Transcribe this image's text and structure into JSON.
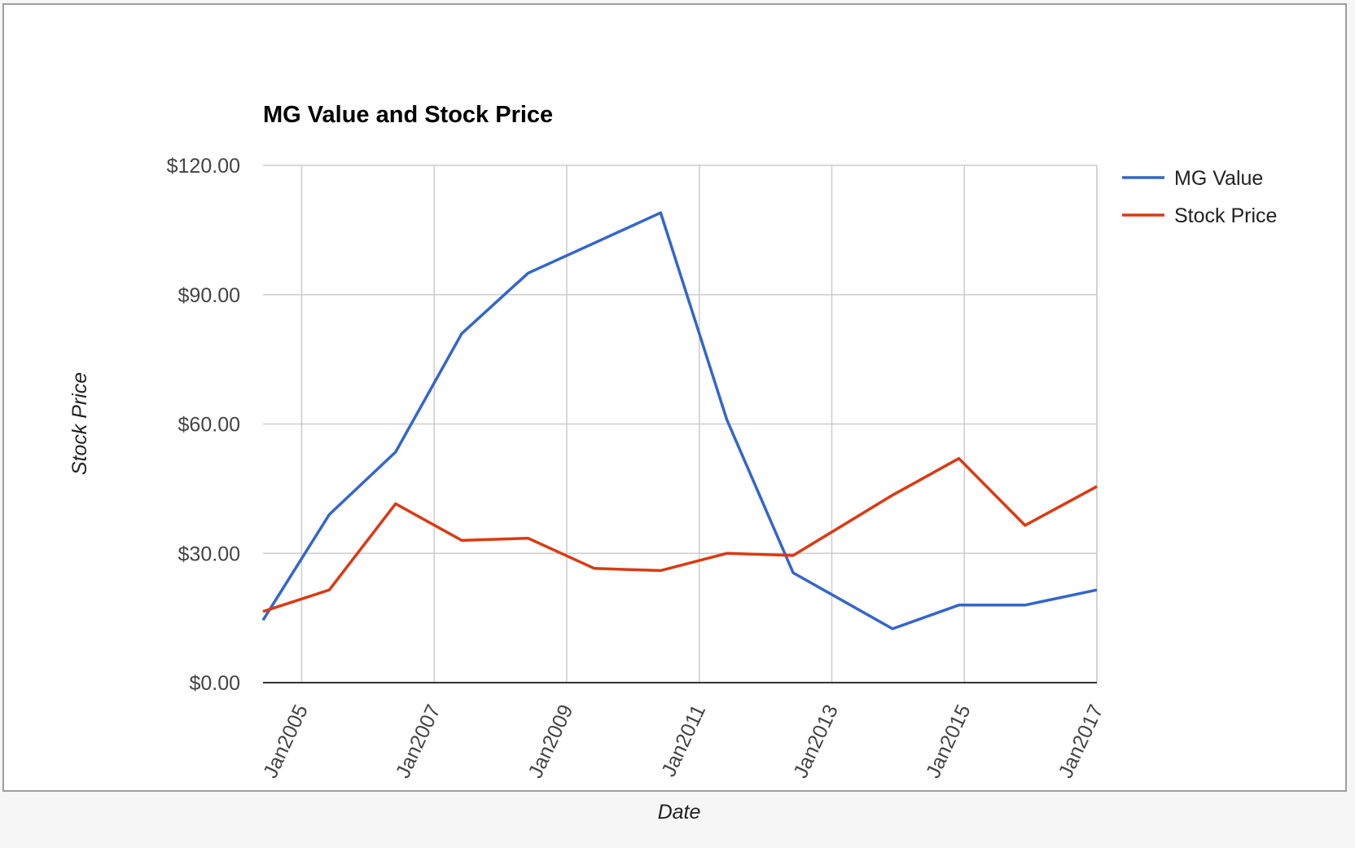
{
  "chart_data": {
    "type": "line",
    "title": "MG Value and Stock Price",
    "xlabel": "Date",
    "ylabel": "Stock Price",
    "ylim": [
      0,
      120
    ],
    "yticks": [
      "$0.00",
      "$30.00",
      "$60.00",
      "$90.00",
      "$120.00"
    ],
    "ytick_values": [
      0,
      30,
      60,
      90,
      120
    ],
    "xticks": [
      "Jan2005",
      "Jan2007",
      "Jan2009",
      "Jan2011",
      "Jan2013",
      "Jan2015",
      "Jan2017"
    ],
    "xtick_years": [
      2005,
      2007,
      2009,
      2011,
      2013,
      2015,
      2017
    ],
    "xlim": [
      "2004-06",
      "2017-01"
    ],
    "x": [
      "2004-06",
      "2005-06",
      "2006-06",
      "2007-06",
      "2008-06",
      "2009-06",
      "2010-06",
      "2011-06",
      "2012-06",
      "2013-12",
      "2014-12",
      "2015-12",
      "2017-01"
    ],
    "series": [
      {
        "name": "MG Value",
        "color": "#3366cc",
        "values": [
          14.5,
          39,
          53.5,
          81,
          95,
          102,
          109,
          61,
          25.5,
          12.5,
          18,
          18,
          21.5
        ]
      },
      {
        "name": "Stock Price",
        "color": "#dc3912",
        "values": [
          16.5,
          21.5,
          41.5,
          33,
          33.5,
          26.5,
          26,
          30,
          29.5,
          43.5,
          52,
          36.5,
          45.5
        ]
      }
    ],
    "grid": true,
    "legend_position": "right"
  }
}
